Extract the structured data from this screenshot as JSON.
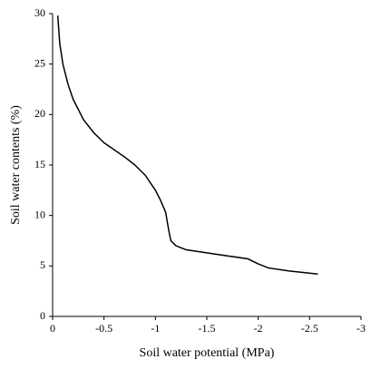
{
  "chart_data": {
    "type": "line",
    "x_label": "Soil water potential (MPa)",
    "y_label": "Soil water contents (%)",
    "x": [
      -0.05,
      -0.07,
      -0.1,
      -0.15,
      -0.2,
      -0.3,
      -0.4,
      -0.5,
      -0.6,
      -0.7,
      -0.8,
      -0.9,
      -1.0,
      -1.05,
      -1.1,
      -1.13,
      -1.15,
      -1.2,
      -1.3,
      -1.5,
      -1.7,
      -1.9,
      -2.0,
      -2.1,
      -2.3,
      -2.58
    ],
    "series": [
      {
        "color": "#000000",
        "values": [
          29.8,
          27,
          25,
          23,
          21.5,
          19.5,
          18.2,
          17.2,
          16.5,
          15.8,
          15,
          14,
          12.5,
          11.5,
          10.3,
          8.5,
          7.5,
          7,
          6.6,
          6.3,
          6,
          5.7,
          5.2,
          4.8,
          4.5,
          4.2
        ]
      }
    ],
    "xlim": [
      0,
      -3
    ],
    "xticks": [
      0,
      -0.5,
      -1,
      -1.5,
      -2,
      -2.5,
      -3
    ],
    "ylim": [
      0,
      30
    ],
    "yticks": [
      0,
      5,
      10,
      15,
      20,
      25,
      30
    ],
    "grid": false
  }
}
